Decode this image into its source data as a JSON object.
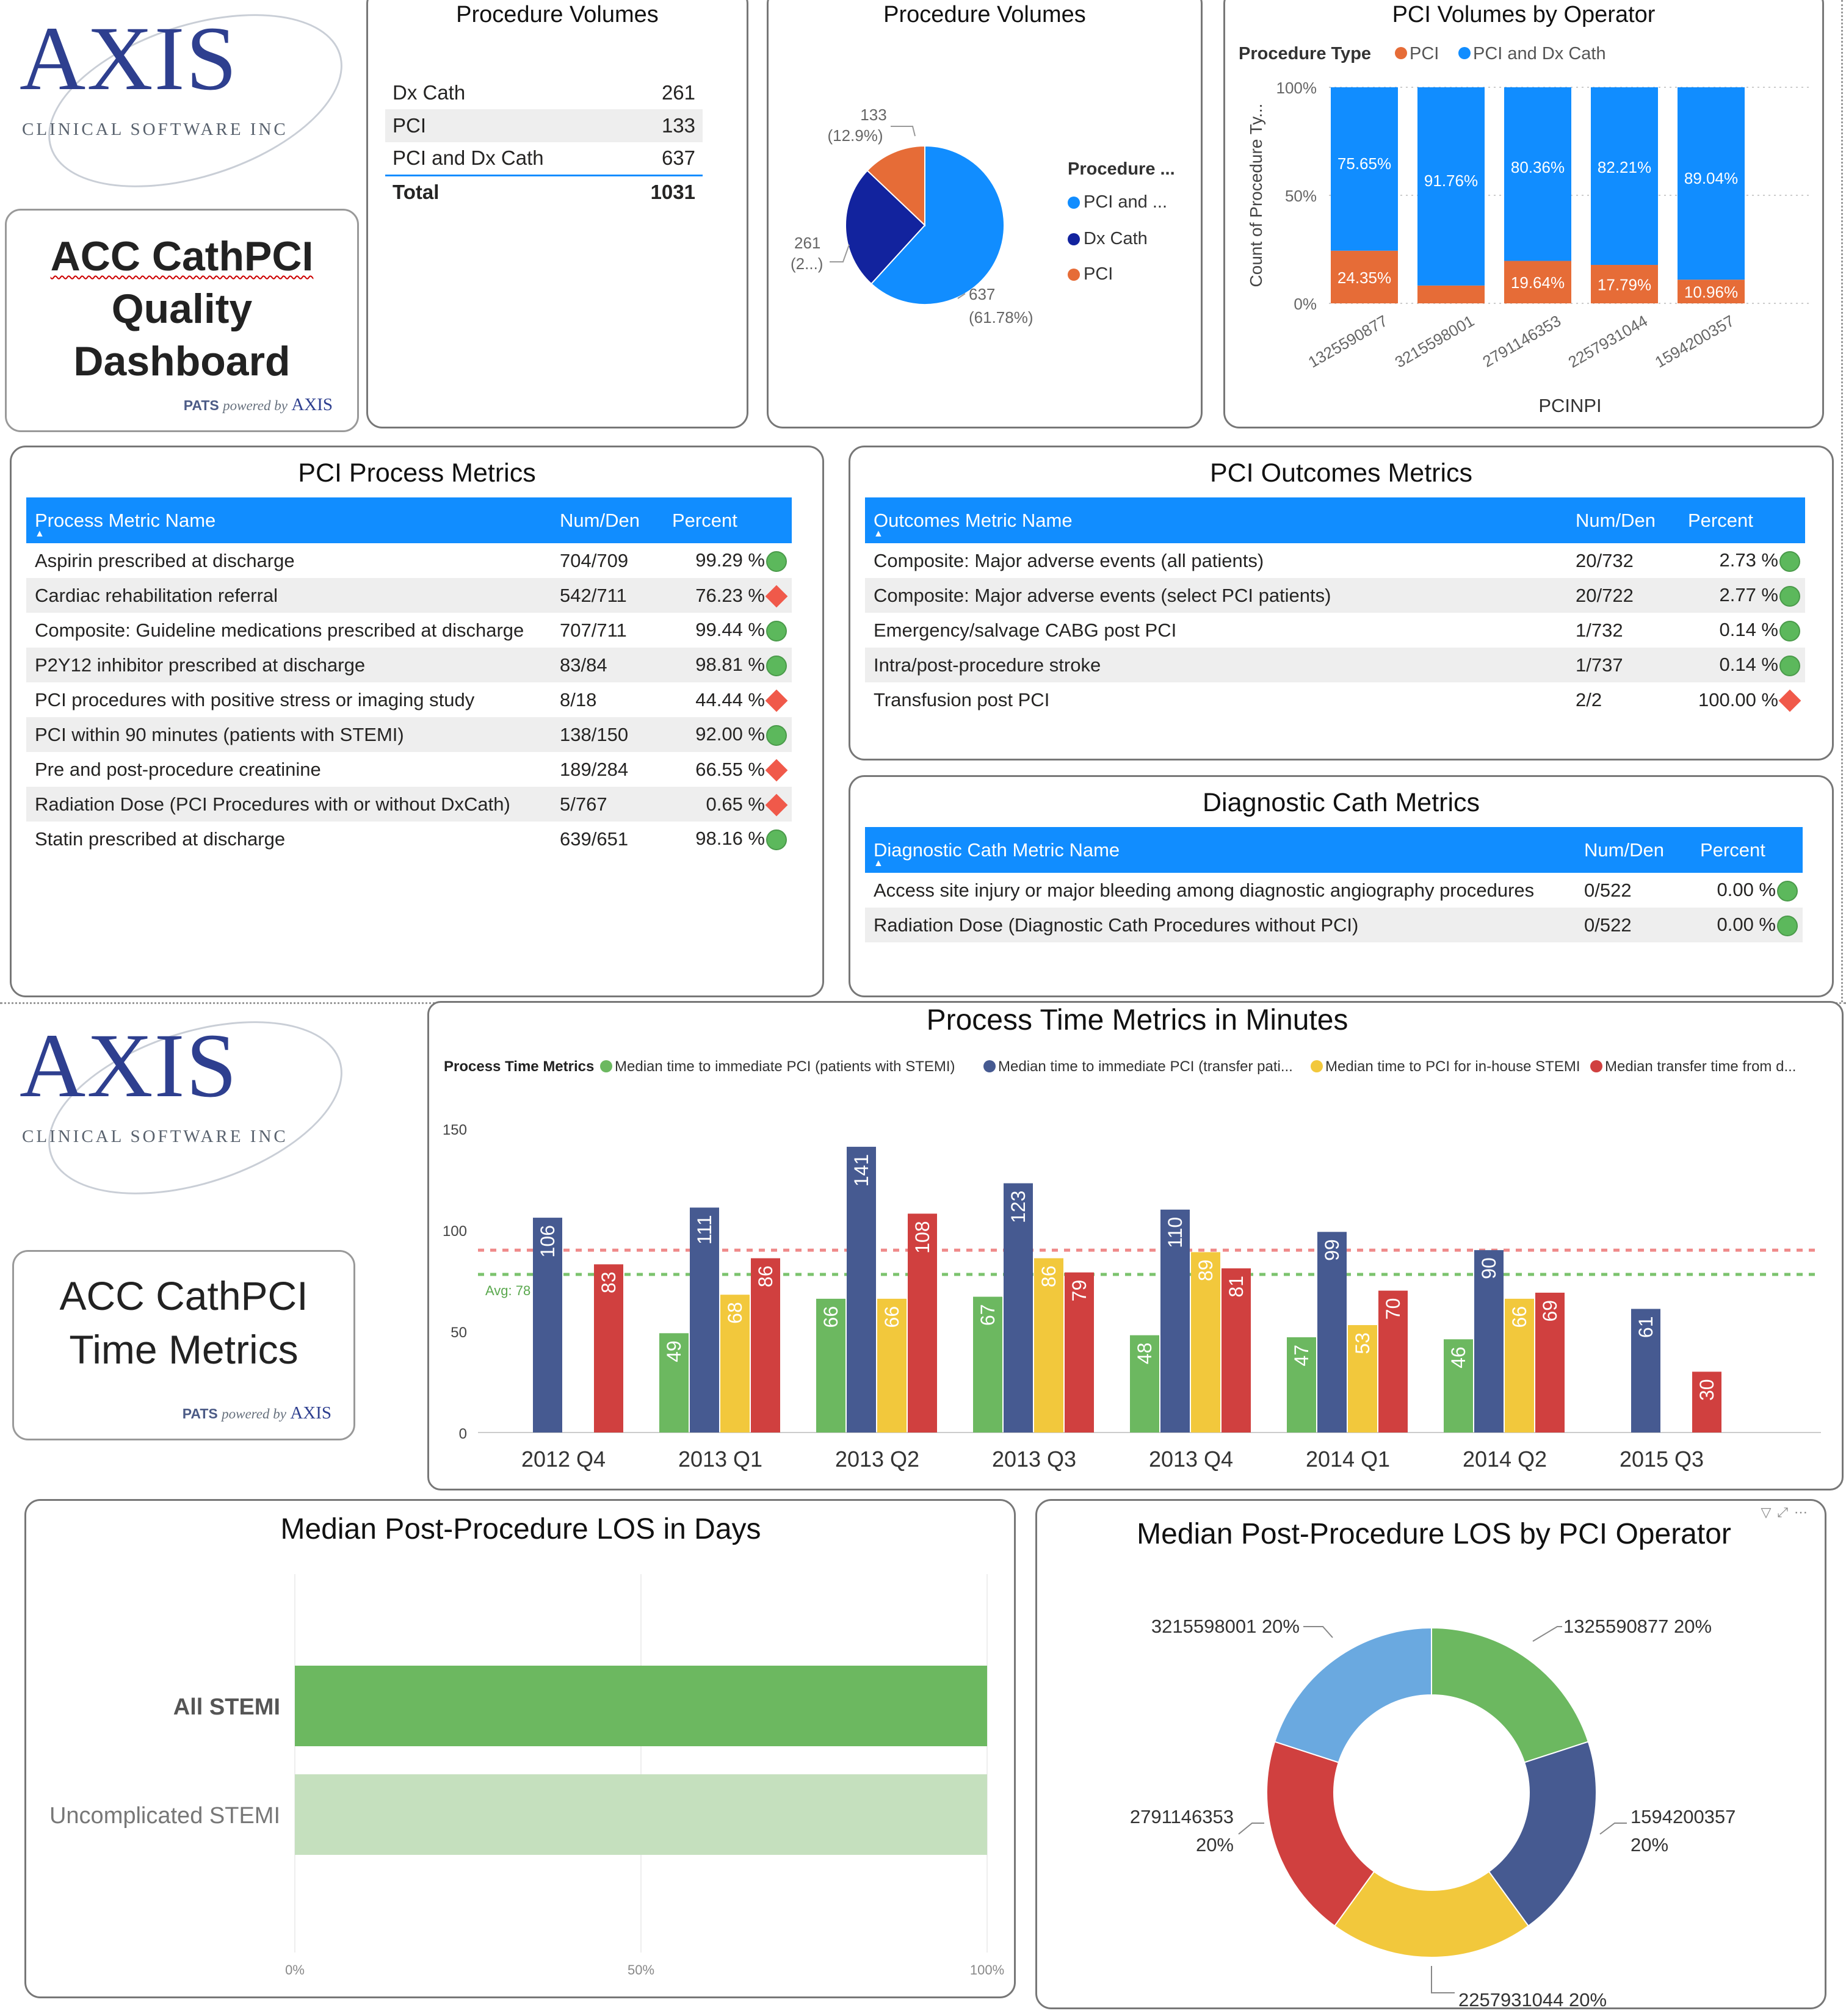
{
  "dashboard1": {
    "logo": {
      "word": "AXIS",
      "subtitle": "CLINICAL SOFTWARE INC"
    },
    "title_lines": [
      "ACC CathPCI",
      "Quality",
      "Dashboard"
    ],
    "pats": {
      "pats": "PATS",
      "powered": "powered by",
      "axis": "AXIS"
    },
    "volumes_table": {
      "title": "Procedure Volumes",
      "rows": [
        {
          "label": "Dx Cath",
          "value": "261"
        },
        {
          "label": "PCI",
          "value": "133"
        },
        {
          "label": "PCI and Dx Cath",
          "value": "637"
        }
      ],
      "total_label": "Total",
      "total_value": "1031"
    },
    "volumes_pie": {
      "title": "Procedure Volumes",
      "legend_title": "Procedure ...",
      "labels": [
        {
          "l1": "133",
          "l2": "(12.9%)"
        },
        {
          "l1": "261",
          "l2": "(2...)"
        },
        {
          "l1": "637",
          "l2": "(61.78%)"
        }
      ]
    },
    "operator_chart": {
      "title": "PCI Volumes by Operator",
      "legend_title": "Procedure Type",
      "ylabel": "Count of Procedure Ty...",
      "xlabel": "PCINPI",
      "yticks": [
        "100%",
        "50%",
        "0%"
      ]
    },
    "process": {
      "title": "PCI Process Metrics",
      "headers": [
        "Process Metric Name",
        "Num/Den",
        "Percent"
      ],
      "rows": [
        {
          "name": "Aspirin prescribed at discharge",
          "nd": "704/709",
          "pct": "99.29 %",
          "status": "good"
        },
        {
          "name": "Cardiac rehabilitation referral",
          "nd": "542/711",
          "pct": "76.23 %",
          "status": "bad"
        },
        {
          "name": "Composite: Guideline medications prescribed at discharge",
          "nd": "707/711",
          "pct": "99.44 %",
          "status": "good"
        },
        {
          "name": "P2Y12 inhibitor prescribed at discharge",
          "nd": "83/84",
          "pct": "98.81 %",
          "status": "good"
        },
        {
          "name": "PCI procedures with positive stress or imaging study",
          "nd": "8/18",
          "pct": "44.44 %",
          "status": "bad"
        },
        {
          "name": "PCI within 90 minutes (patients with STEMI)",
          "nd": "138/150",
          "pct": "92.00 %",
          "status": "good"
        },
        {
          "name": "Pre and post-procedure creatinine",
          "nd": "189/284",
          "pct": "66.55 %",
          "status": "bad"
        },
        {
          "name": "Radiation Dose (PCI Procedures with or without DxCath)",
          "nd": "5/767",
          "pct": "0.65 %",
          "status": "bad"
        },
        {
          "name": "Statin prescribed at discharge",
          "nd": "639/651",
          "pct": "98.16 %",
          "status": "good"
        }
      ]
    },
    "outcomes": {
      "title": "PCI Outcomes Metrics",
      "headers": [
        "Outcomes Metric Name",
        "Num/Den",
        "Percent"
      ],
      "rows": [
        {
          "name": "Composite: Major adverse events (all patients)",
          "nd": "20/732",
          "pct": "2.73 %",
          "status": "good"
        },
        {
          "name": "Composite: Major adverse events (select PCI patients)",
          "nd": "20/722",
          "pct": "2.77 %",
          "status": "good"
        },
        {
          "name": "Emergency/salvage CABG post PCI",
          "nd": "1/732",
          "pct": "0.14 %",
          "status": "good"
        },
        {
          "name": "Intra/post-procedure stroke",
          "nd": "1/737",
          "pct": "0.14 %",
          "status": "good"
        },
        {
          "name": "Transfusion post PCI",
          "nd": "2/2",
          "pct": "100.00 %",
          "status": "bad"
        }
      ]
    },
    "diagnostic": {
      "title": "Diagnostic Cath Metrics",
      "headers": [
        "Diagnostic Cath Metric Name",
        "Num/Den",
        "Percent"
      ],
      "rows": [
        {
          "name": "Access site injury or major bleeding among diagnostic angiography procedures",
          "nd": "0/522",
          "pct": "0.00 %",
          "status": "good"
        },
        {
          "name": "Radiation Dose (Diagnostic Cath Procedures without PCI)",
          "nd": "0/522",
          "pct": "0.00 %",
          "status": "good"
        }
      ]
    }
  },
  "dashboard2": {
    "logo": {
      "word": "AXIS",
      "subtitle": "CLINICAL SOFTWARE INC"
    },
    "title_lines": [
      "ACC CathPCI",
      "Time Metrics"
    ],
    "pats": {
      "pats": "PATS",
      "powered": "powered by",
      "axis": "AXIS"
    },
    "time_chart": {
      "title": "Process Time Metrics in Minutes",
      "legend_title": "Process Time Metrics",
      "avg_label": "Avg: 78"
    },
    "los_bar": {
      "title": "Median Post-Procedure LOS in Days",
      "xticks": [
        "0%",
        "50%",
        "100%"
      ]
    },
    "los_donut": {
      "title": "Median Post-Procedure LOS by PCI Operator"
    }
  },
  "colors": {
    "accent": "#118dff",
    "pci": "#e66c37",
    "pci_dx": "#118dff",
    "dx": "#12239e",
    "green": "#6cb860",
    "navy": "#465a91",
    "yellow": "#f2c83c",
    "red": "#d0403f",
    "sky": "#6aa9e0",
    "good": "#5cb85c",
    "bad": "#f0594a"
  },
  "chart_data": [
    {
      "type": "pie",
      "title": "Procedure Volumes",
      "categories": [
        "PCI and Dx Cath",
        "Dx Cath",
        "PCI"
      ],
      "values": [
        637,
        261,
        133
      ],
      "percent_labels": [
        "61.78%",
        "",
        "12.9%"
      ],
      "legend": "right"
    },
    {
      "type": "bar",
      "stacked": "100%",
      "title": "PCI Volumes by Operator",
      "xlabel": "PCINPI",
      "ylabel": "Count of Procedure Ty...",
      "categories": [
        "1325590877",
        "3215598001",
        "2791146353",
        "2257931044",
        "1594200357"
      ],
      "series": [
        {
          "name": "PCI",
          "values": [
            24.35,
            8.24,
            19.64,
            17.79,
            10.96
          ],
          "labels": [
            "24.35%",
            "",
            "19.64%",
            "17.79%",
            "10.96%"
          ]
        },
        {
          "name": "PCI and Dx Cath",
          "values": [
            75.65,
            91.76,
            80.36,
            82.21,
            89.04
          ],
          "labels": [
            "75.65%",
            "91.76%",
            "80.36%",
            "82.21%",
            "89.04%"
          ]
        }
      ],
      "ylim": [
        0,
        100
      ],
      "legend": "top-left"
    },
    {
      "type": "bar",
      "title": "Process Time Metrics in Minutes",
      "categories": [
        "2012 Q4",
        "2013 Q1",
        "2013 Q2",
        "2013 Q3",
        "2013 Q4",
        "2014 Q1",
        "2014 Q2",
        "2015 Q3"
      ],
      "series": [
        {
          "name": "Median time to immediate PCI (patients with STEMI)",
          "values": [
            null,
            49,
            66,
            67,
            48,
            47,
            46,
            null
          ]
        },
        {
          "name": "Median time to immediate PCI (transfer pati...",
          "values": [
            106,
            111,
            141,
            123,
            110,
            99,
            90,
            61
          ]
        },
        {
          "name": "Median time to PCI for in-house STEMI",
          "values": [
            null,
            68,
            66,
            86,
            89,
            53,
            66,
            null
          ]
        },
        {
          "name": "Median transfer time from d...",
          "values": [
            83,
            86,
            108,
            79,
            81,
            70,
            69,
            30
          ]
        }
      ],
      "ylim": [
        0,
        150
      ],
      "yticks": [
        0,
        50,
        100,
        150
      ],
      "reference_lines": [
        {
          "label": "Avg: 78",
          "value": 78
        },
        {
          "label": "",
          "value": 90
        }
      ],
      "legend": "top-left"
    },
    {
      "type": "bar",
      "orientation": "horizontal",
      "stacked": "100%",
      "title": "Median Post-Procedure LOS in Days",
      "categories": [
        "All STEMI",
        "Uncomplicated STEMI"
      ],
      "values": [
        100,
        100
      ],
      "xlim": [
        0,
        100
      ],
      "xticks": [
        "0%",
        "50%",
        "100%"
      ]
    },
    {
      "type": "pie",
      "donut": true,
      "title": "Median Post-Procedure LOS by PCI Operator",
      "categories": [
        "1325590877",
        "1594200357",
        "2257931044",
        "2791146353",
        "3215598001"
      ],
      "values": [
        20,
        20,
        20,
        20,
        20
      ],
      "labels": [
        "1325590877 20%",
        "1594200357 20%",
        "2257931044 20%",
        "2791146353 20%",
        "3215598001 20%"
      ]
    }
  ]
}
